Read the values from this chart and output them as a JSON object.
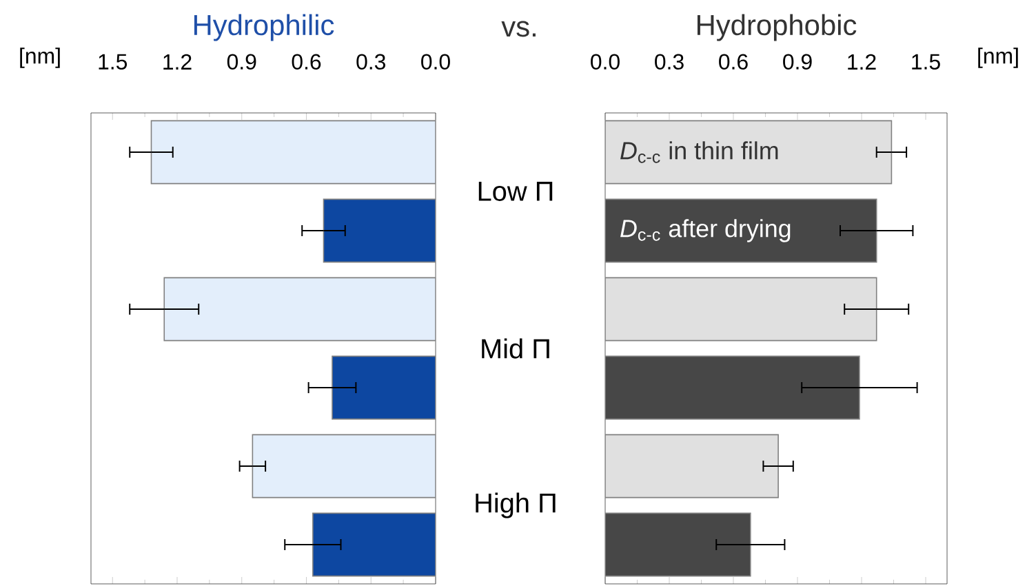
{
  "chart_data": [
    {
      "type": "bar",
      "orientation": "horizontal",
      "title": "Hydrophilic",
      "xlabel": "[nm]",
      "annotations": [
        "vs."
      ],
      "categories": [
        "Low Π",
        "Mid Π",
        "High Π"
      ],
      "series": [
        {
          "color": "#e3eefb",
          "values": [
            1.32,
            1.26,
            0.85
          ],
          "errors": [
            0.1,
            0.16,
            0.06
          ]
        },
        {
          "color": "#0d47a1",
          "values": [
            0.52,
            0.48,
            0.57
          ],
          "errors": [
            0.1,
            0.11,
            0.13
          ]
        }
      ],
      "xlim": [
        1.6,
        0
      ],
      "xticks": [
        {
          "value": 0,
          "label": "0.0"
        },
        0.3,
        0.6,
        0.9,
        1.2,
        1.5
      ]
    },
    {
      "type": "bar",
      "orientation": "horizontal",
      "title": "Hydrophobic",
      "xlabel": "[nm]",
      "categories": [
        null,
        null,
        null
      ],
      "legend": "top left",
      "series": [
        {
          "name": "*D*$_{c-c}$ in thin film",
          "color": "#e0e0e0",
          "values": [
            1.34,
            1.27,
            0.81
          ],
          "errors": [
            0.07,
            0.15,
            0.07
          ]
        },
        {
          "name": "*D*$_{c-c}$ after drying",
          "color": "#474747",
          "values": [
            1.27,
            1.19,
            0.68
          ],
          "errors": [
            0.17,
            0.27,
            0.16
          ]
        }
      ],
      "xlim": [
        0,
        1.6
      ],
      "xticks": [
        {
          "value": 0,
          "label": "0.0"
        },
        0.3,
        0.6,
        0.9,
        1.2,
        1.5
      ]
    }
  ]
}
